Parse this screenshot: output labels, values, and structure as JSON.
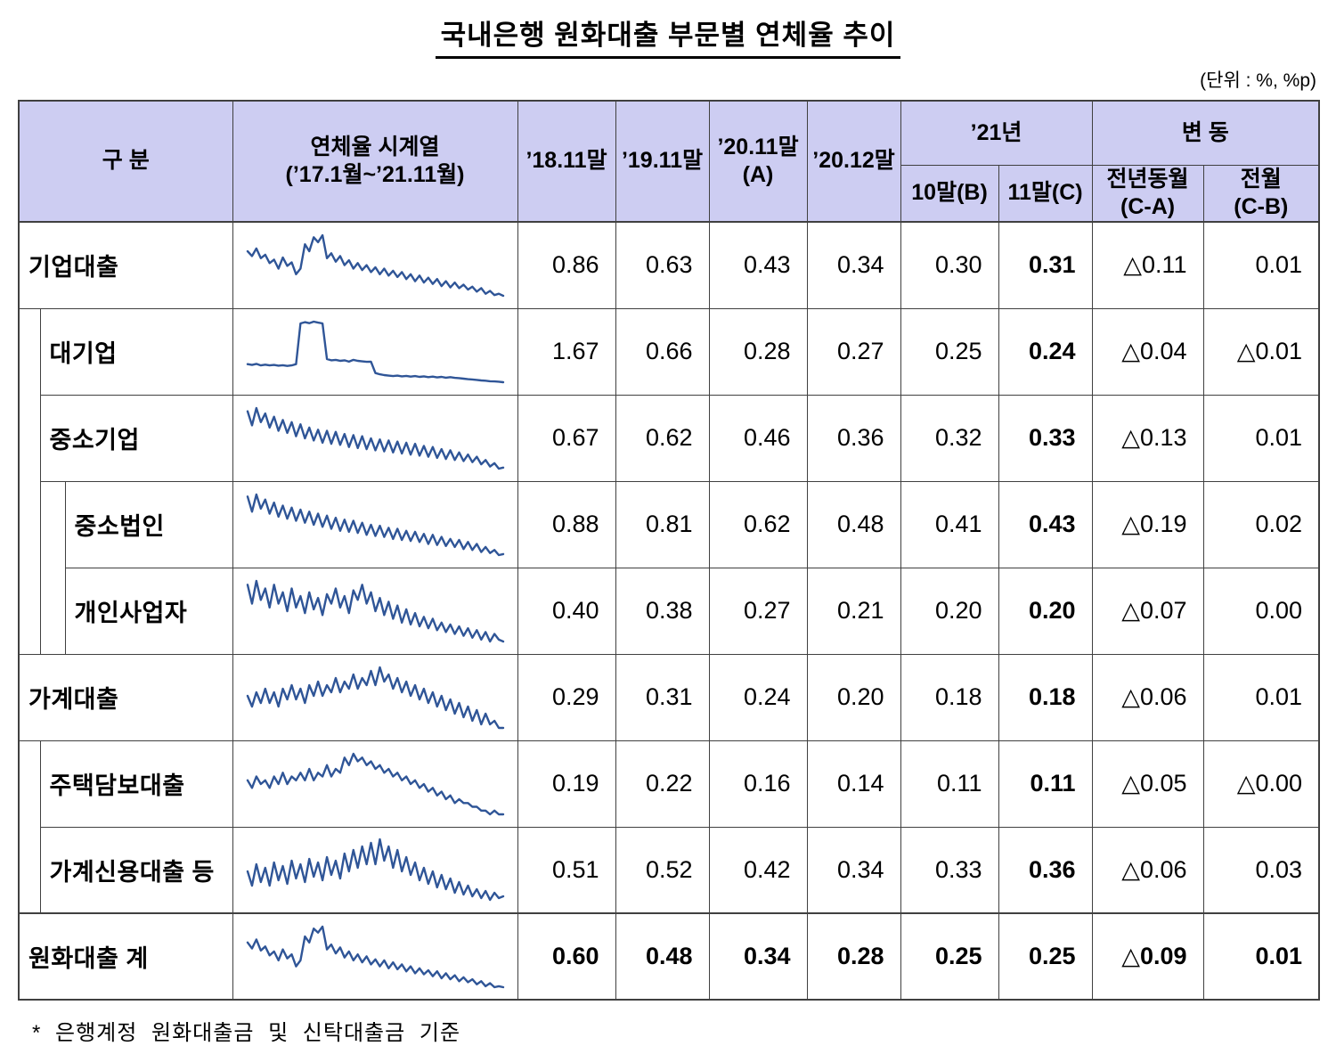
{
  "title": "국내은행 원화대출 부문별 연체율 추이",
  "unit_note": "(단위 : %, %p)",
  "footnote": "* 은행계정 원화대출금 및 신탁대출금 기준",
  "colors": {
    "header_bg": "#cdcdf2",
    "sparkline": "#2f5597",
    "border": "#404040"
  },
  "header": {
    "category": "구 분",
    "timeseries": "연체율 시계열",
    "timeseries_sub": "(’17.1월~’21.11월)",
    "col_1811": "’18.11말",
    "col_1911": "’19.11말",
    "col_2011": "’20.11말",
    "col_2011_sub": "(A)",
    "col_2012": "’20.12말",
    "col_21": "’21년",
    "col_21_10": "10말(B)",
    "col_21_11": "11말(C)",
    "col_change": "변 동",
    "col_change_yoy": "전년동월",
    "col_change_yoy_sub": "(C-A)",
    "col_change_mom": "전월",
    "col_change_mom_sub": "(C-B)"
  },
  "chart_data": {
    "type": "table",
    "title": "국내은행 원화대출 부문별 연체율 추이",
    "unit": "%, %p",
    "sparkline_x_range": "’17.1월~’21.11월",
    "columns": [
      "구 분",
      "연체율 시계열 (’17.1월~’21.11월)",
      "’18.11말",
      "’19.11말",
      "’20.11말(A)",
      "’20.12말",
      "’21년 10말(B)",
      "’21년 11말(C)",
      "변동 전년동월(C-A)",
      "변동 전월(C-B)"
    ],
    "rows": [
      {
        "label": "기업대출",
        "indent": 0,
        "bold": false,
        "values": [
          "0.86",
          "0.63",
          "0.43",
          "0.34",
          "0.30",
          "0.31",
          "△0.11",
          "0.01"
        ],
        "sparkline": [
          0.95,
          0.88,
          0.99,
          0.85,
          0.9,
          0.78,
          0.83,
          0.7,
          0.86,
          0.74,
          0.79,
          0.62,
          0.7,
          1.05,
          0.95,
          1.15,
          1.08,
          1.18,
          0.85,
          0.92,
          0.8,
          0.88,
          0.75,
          0.82,
          0.7,
          0.78,
          0.68,
          0.75,
          0.65,
          0.72,
          0.62,
          0.7,
          0.6,
          0.67,
          0.58,
          0.65,
          0.55,
          0.62,
          0.52,
          0.6,
          0.5,
          0.57,
          0.48,
          0.55,
          0.45,
          0.52,
          0.43,
          0.5,
          0.42,
          0.47,
          0.4,
          0.44,
          0.37,
          0.42,
          0.34,
          0.38,
          0.32,
          0.34,
          0.31
        ]
      },
      {
        "label": "대기업",
        "indent": 1,
        "bold": false,
        "values": [
          "1.67",
          "0.66",
          "0.28",
          "0.27",
          "0.25",
          "0.24",
          "△0.04",
          "△0.01"
        ],
        "sparkline": [
          0.95,
          0.92,
          0.96,
          0.9,
          0.93,
          0.9,
          0.92,
          0.89,
          0.91,
          0.88,
          0.9,
          0.95,
          2.55,
          2.6,
          2.56,
          2.62,
          2.58,
          2.55,
          1.15,
          1.1,
          1.12,
          1.08,
          1.1,
          1.05,
          1.12,
          1.08,
          1.06,
          1.04,
          1.05,
          0.6,
          0.55,
          0.52,
          0.5,
          0.48,
          0.5,
          0.47,
          0.49,
          0.46,
          0.48,
          0.45,
          0.47,
          0.44,
          0.46,
          0.43,
          0.45,
          0.42,
          0.44,
          0.41,
          0.4,
          0.38,
          0.36,
          0.35,
          0.33,
          0.31,
          0.3,
          0.28,
          0.27,
          0.26,
          0.24
        ]
      },
      {
        "label": "중소기업",
        "indent": 1,
        "bold": false,
        "values": [
          "0.67",
          "0.62",
          "0.46",
          "0.36",
          "0.32",
          "0.33",
          "△0.13",
          "0.01"
        ],
        "sparkline": [
          0.85,
          0.72,
          0.88,
          0.75,
          0.83,
          0.7,
          0.8,
          0.67,
          0.77,
          0.65,
          0.75,
          0.62,
          0.73,
          0.6,
          0.7,
          0.58,
          0.68,
          0.56,
          0.67,
          0.55,
          0.66,
          0.54,
          0.64,
          0.52,
          0.63,
          0.51,
          0.62,
          0.5,
          0.6,
          0.49,
          0.59,
          0.48,
          0.58,
          0.47,
          0.57,
          0.46,
          0.56,
          0.45,
          0.55,
          0.44,
          0.53,
          0.43,
          0.52,
          0.42,
          0.5,
          0.41,
          0.49,
          0.4,
          0.47,
          0.39,
          0.45,
          0.38,
          0.43,
          0.36,
          0.4,
          0.34,
          0.37,
          0.32,
          0.33
        ]
      },
      {
        "label": "중소법인",
        "indent": 2,
        "bold": false,
        "values": [
          "0.88",
          "0.81",
          "0.62",
          "0.48",
          "0.41",
          "0.43",
          "△0.19",
          "0.02"
        ],
        "sparkline": [
          1.0,
          0.85,
          1.02,
          0.88,
          0.97,
          0.83,
          0.94,
          0.8,
          0.91,
          0.78,
          0.89,
          0.76,
          0.87,
          0.74,
          0.85,
          0.72,
          0.83,
          0.7,
          0.81,
          0.68,
          0.79,
          0.66,
          0.77,
          0.65,
          0.76,
          0.64,
          0.74,
          0.62,
          0.72,
          0.61,
          0.71,
          0.6,
          0.69,
          0.58,
          0.68,
          0.57,
          0.66,
          0.56,
          0.65,
          0.55,
          0.63,
          0.53,
          0.62,
          0.52,
          0.6,
          0.51,
          0.58,
          0.5,
          0.57,
          0.48,
          0.55,
          0.47,
          0.53,
          0.45,
          0.5,
          0.44,
          0.47,
          0.42,
          0.43
        ]
      },
      {
        "label": "개인사업자",
        "indent": 2,
        "bold": false,
        "values": [
          "0.40",
          "0.38",
          "0.27",
          "0.21",
          "0.20",
          "0.20",
          "△0.07",
          "0.00"
        ],
        "sparkline": [
          0.5,
          0.4,
          0.52,
          0.42,
          0.48,
          0.38,
          0.5,
          0.4,
          0.46,
          0.36,
          0.48,
          0.38,
          0.44,
          0.35,
          0.46,
          0.37,
          0.43,
          0.34,
          0.45,
          0.4,
          0.48,
          0.38,
          0.44,
          0.35,
          0.47,
          0.42,
          0.5,
          0.4,
          0.46,
          0.36,
          0.43,
          0.34,
          0.41,
          0.32,
          0.39,
          0.3,
          0.37,
          0.29,
          0.35,
          0.28,
          0.33,
          0.27,
          0.32,
          0.26,
          0.3,
          0.25,
          0.29,
          0.24,
          0.28,
          0.23,
          0.27,
          0.22,
          0.26,
          0.21,
          0.25,
          0.2,
          0.24,
          0.21,
          0.2
        ]
      },
      {
        "label": "가계대출",
        "indent": 0,
        "bold": false,
        "values": [
          "0.29",
          "0.31",
          "0.24",
          "0.20",
          "0.18",
          "0.18",
          "△0.06",
          "0.01"
        ],
        "sparkline": [
          0.27,
          0.24,
          0.28,
          0.25,
          0.29,
          0.25,
          0.28,
          0.24,
          0.29,
          0.26,
          0.3,
          0.26,
          0.29,
          0.25,
          0.3,
          0.27,
          0.31,
          0.27,
          0.3,
          0.28,
          0.32,
          0.28,
          0.31,
          0.29,
          0.33,
          0.29,
          0.32,
          0.3,
          0.34,
          0.3,
          0.35,
          0.31,
          0.33,
          0.29,
          0.32,
          0.28,
          0.31,
          0.27,
          0.3,
          0.26,
          0.29,
          0.25,
          0.28,
          0.24,
          0.27,
          0.23,
          0.26,
          0.22,
          0.25,
          0.21,
          0.24,
          0.2,
          0.23,
          0.19,
          0.22,
          0.19,
          0.2,
          0.18,
          0.18
        ]
      },
      {
        "label": "주택담보대출",
        "indent": 1,
        "bold": false,
        "values": [
          "0.19",
          "0.22",
          "0.16",
          "0.14",
          "0.11",
          "0.11",
          "△0.05",
          "△0.00"
        ],
        "sparkline": [
          0.2,
          0.18,
          0.21,
          0.19,
          0.2,
          0.18,
          0.21,
          0.19,
          0.22,
          0.19,
          0.21,
          0.2,
          0.22,
          0.2,
          0.23,
          0.2,
          0.22,
          0.21,
          0.24,
          0.21,
          0.23,
          0.22,
          0.26,
          0.24,
          0.27,
          0.25,
          0.26,
          0.24,
          0.25,
          0.23,
          0.24,
          0.22,
          0.23,
          0.21,
          0.22,
          0.2,
          0.21,
          0.19,
          0.2,
          0.18,
          0.19,
          0.17,
          0.18,
          0.16,
          0.17,
          0.15,
          0.16,
          0.14,
          0.15,
          0.14,
          0.14,
          0.13,
          0.13,
          0.12,
          0.12,
          0.11,
          0.12,
          0.11,
          0.11
        ]
      },
      {
        "label": "가계신용대출 등",
        "indent": 1,
        "bold": false,
        "values": [
          "0.51",
          "0.52",
          "0.42",
          "0.34",
          "0.33",
          "0.36",
          "△0.06",
          "0.03"
        ],
        "sparkline": [
          0.5,
          0.42,
          0.54,
          0.44,
          0.52,
          0.42,
          0.55,
          0.45,
          0.53,
          0.43,
          0.56,
          0.46,
          0.54,
          0.44,
          0.57,
          0.47,
          0.55,
          0.45,
          0.58,
          0.48,
          0.56,
          0.46,
          0.6,
          0.5,
          0.62,
          0.52,
          0.64,
          0.54,
          0.66,
          0.54,
          0.68,
          0.56,
          0.64,
          0.52,
          0.62,
          0.5,
          0.58,
          0.48,
          0.55,
          0.45,
          0.52,
          0.43,
          0.5,
          0.41,
          0.48,
          0.4,
          0.46,
          0.38,
          0.44,
          0.37,
          0.42,
          0.36,
          0.4,
          0.35,
          0.39,
          0.34,
          0.38,
          0.35,
          0.36
        ]
      },
      {
        "label": "원화대출 계",
        "indent": 0,
        "bold": true,
        "values": [
          "0.60",
          "0.48",
          "0.34",
          "0.28",
          "0.25",
          "0.25",
          "△0.09",
          "0.01"
        ],
        "sparkline": [
          0.7,
          0.64,
          0.73,
          0.62,
          0.66,
          0.57,
          0.61,
          0.52,
          0.63,
          0.54,
          0.58,
          0.46,
          0.52,
          0.76,
          0.7,
          0.84,
          0.8,
          0.86,
          0.63,
          0.68,
          0.59,
          0.65,
          0.55,
          0.61,
          0.52,
          0.58,
          0.5,
          0.56,
          0.48,
          0.53,
          0.46,
          0.52,
          0.44,
          0.5,
          0.43,
          0.48,
          0.41,
          0.46,
          0.39,
          0.44,
          0.38,
          0.42,
          0.36,
          0.41,
          0.34,
          0.39,
          0.33,
          0.37,
          0.31,
          0.35,
          0.3,
          0.33,
          0.28,
          0.31,
          0.26,
          0.29,
          0.25,
          0.26,
          0.25
        ]
      }
    ]
  }
}
